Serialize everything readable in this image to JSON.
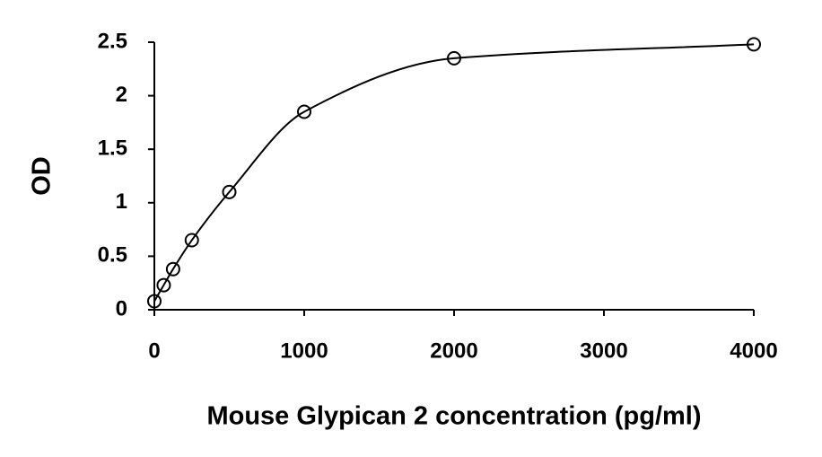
{
  "chart_data": {
    "type": "scatter",
    "x_label": "Mouse Glypican 2 concentration (pg/ml)",
    "y_label": "OD",
    "x": [
      0,
      62.5,
      125,
      250,
      500,
      1000,
      2000,
      4000
    ],
    "series": [
      {
        "color": "#000000",
        "marker": "circle",
        "line": "smooth",
        "values": [
          0.08,
          0.23,
          0.38,
          0.65,
          1.1,
          1.85,
          2.35,
          2.48
        ]
      }
    ],
    "xlim": [
      0,
      4000
    ],
    "ylim": [
      0,
      2.5
    ],
    "xticks": [
      0,
      1000,
      2000,
      3000,
      4000
    ],
    "yticks": [
      0,
      0.5,
      1,
      1.5,
      2,
      2.5
    ],
    "grid": false
  }
}
